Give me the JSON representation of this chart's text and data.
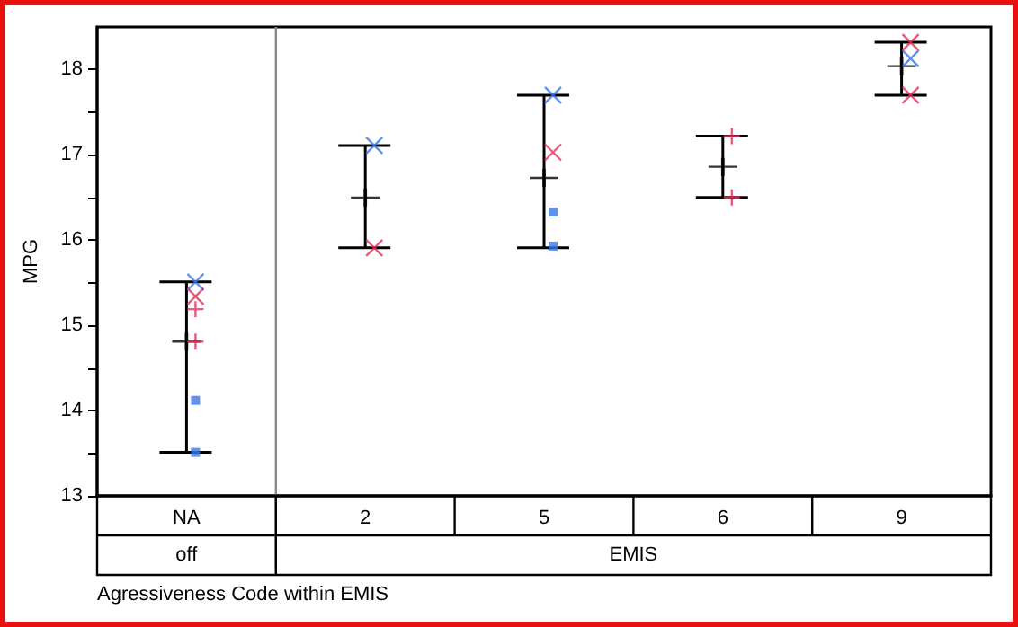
{
  "chart_data": {
    "type": "scatter",
    "ylabel": "MPG",
    "xlabel": "Agressiveness Code within EMIS",
    "categories": [
      "NA",
      "2",
      "5",
      "6",
      "9"
    ],
    "annotations": [
      "off",
      "EMIS"
    ],
    "ylim": [
      13,
      18.5
    ],
    "yticks": [
      13,
      {
        "value": 13.5,
        "label": null
      },
      14,
      {
        "value": 14.5,
        "label": null
      },
      15,
      {
        "value": 15.5,
        "label": null
      },
      16,
      {
        "value": 16.5,
        "label": null
      },
      17,
      {
        "value": 17.5,
        "label": null
      },
      18
    ],
    "grid": false,
    "series": [
      {
        "color": "#000000",
        "values": [
          14.81,
          16.5,
          16.73,
          16.86,
          18.04
        ],
        "errors": [
          [
            13.51,
            15.51
          ],
          [
            15.91,
            17.11
          ],
          [
            15.91,
            17.7
          ],
          [
            16.5,
            17.22
          ],
          [
            17.7,
            18.32
          ]
        ]
      },
      {
        "color": "#3a78e8",
        "marker": "cross",
        "x": [
          "NA",
          "2",
          "5",
          "9"
        ],
        "values": [
          15.51,
          17.11,
          17.7,
          18.13
        ]
      },
      {
        "color": "#e0325a",
        "marker": "cross",
        "x": [
          "NA",
          "2",
          "5",
          "9",
          "9"
        ],
        "values": [
          15.34,
          15.91,
          17.03,
          18.32,
          17.7
        ]
      },
      {
        "color": "#e0325a",
        "marker": "plus",
        "x": [
          "NA",
          "NA",
          "6",
          "6"
        ],
        "values": [
          15.19,
          14.81,
          17.22,
          16.5
        ]
      },
      {
        "color": "#3a78e8",
        "marker": "square",
        "x": [
          "NA",
          "NA",
          "5",
          "5"
        ],
        "values": [
          14.12,
          13.51,
          16.33,
          15.93
        ]
      }
    ]
  }
}
